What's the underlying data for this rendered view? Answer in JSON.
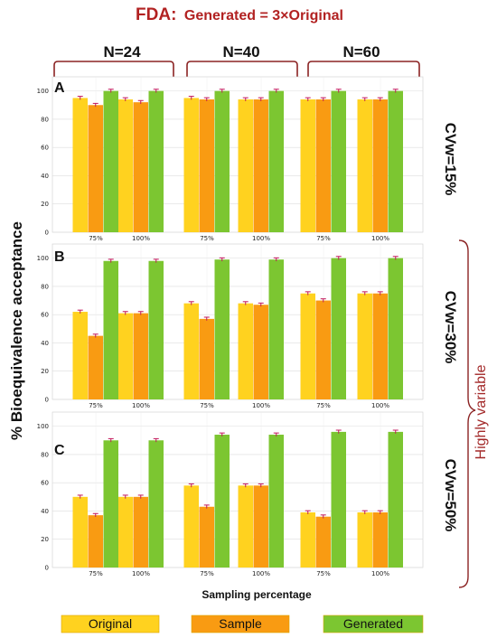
{
  "title": {
    "prefix": "FDA:",
    "rest": "Generated = 3×Original",
    "color": "#b22222"
  },
  "group_labels": [
    "N=24",
    "N=40",
    "N=60"
  ],
  "y_axis_label": "% Bioequivalence acceptance",
  "x_axis_label": "Sampling percentage",
  "highly_variable_label": "Highly variable",
  "colors": {
    "original": "#ffd21f",
    "sample": "#f99b12",
    "generated": "#7cc631",
    "errorbar": "#c2185b",
    "bracket": "#8b2323"
  },
  "legend": [
    "Original",
    "Sample",
    "Generated"
  ],
  "chart_data": [
    {
      "type": "bar",
      "panel": "A",
      "cv_label": "CVw=15%",
      "categories": [
        "75%",
        "100%",
        "75%",
        "100%",
        "75%",
        "100%"
      ],
      "ylim": [
        0,
        110
      ],
      "yticks": [
        0,
        20,
        40,
        60,
        80,
        100
      ],
      "grid": true,
      "series": [
        {
          "name": "Original",
          "values": [
            95,
            94,
            95,
            94,
            94,
            94
          ]
        },
        {
          "name": "Sample",
          "values": [
            90,
            92,
            94,
            94,
            94,
            94
          ]
        },
        {
          "name": "Generated",
          "values": [
            100,
            100,
            100,
            100,
            100,
            100
          ]
        }
      ]
    },
    {
      "type": "bar",
      "panel": "B",
      "cv_label": "CVw=30%",
      "categories": [
        "75%",
        "100%",
        "75%",
        "100%",
        "75%",
        "100%"
      ],
      "ylim": [
        0,
        110
      ],
      "yticks": [
        0,
        20,
        40,
        60,
        80,
        100
      ],
      "grid": true,
      "series": [
        {
          "name": "Original",
          "values": [
            62,
            61,
            68,
            68,
            75,
            75
          ]
        },
        {
          "name": "Sample",
          "values": [
            45,
            61,
            57,
            67,
            70,
            75
          ]
        },
        {
          "name": "Generated",
          "values": [
            98,
            98,
            99,
            99,
            100,
            100
          ]
        }
      ]
    },
    {
      "type": "bar",
      "panel": "C",
      "cv_label": "CVw=50%",
      "categories": [
        "75%",
        "100%",
        "75%",
        "100%",
        "75%",
        "100%"
      ],
      "ylim": [
        0,
        110
      ],
      "yticks": [
        0,
        20,
        40,
        60,
        80,
        100
      ],
      "grid": true,
      "series": [
        {
          "name": "Original",
          "values": [
            50,
            50,
            58,
            58,
            39,
            39
          ]
        },
        {
          "name": "Sample",
          "values": [
            37,
            50,
            43,
            58,
            36,
            39
          ]
        },
        {
          "name": "Generated",
          "values": [
            90,
            90,
            94,
            94,
            96,
            96
          ]
        }
      ]
    }
  ]
}
